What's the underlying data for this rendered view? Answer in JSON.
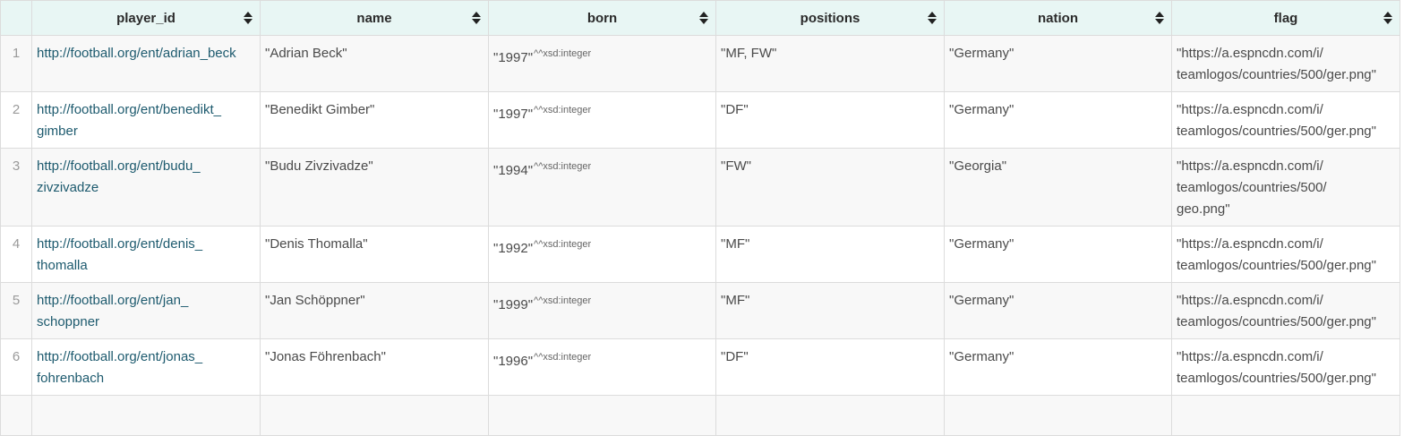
{
  "columns": [
    "player_id",
    "name",
    "born",
    "positions",
    "nation",
    "flag"
  ],
  "datatype_suffix": "^^xsd:integer",
  "rows": [
    {
      "num": "1",
      "player_id": [
        "http://football.org/ent/adrian_beck"
      ],
      "name": "\"Adrian Beck\"",
      "born": "\"1997\"",
      "positions": "\"MF, FW\"",
      "nation": "\"Germany\"",
      "flag": [
        "\"https://a.espncdn.com/i/",
        "teamlogos/countries/500/ger.png\""
      ]
    },
    {
      "num": "2",
      "player_id": [
        "http://football.org/ent/benedikt_",
        "gimber"
      ],
      "name": "\"Benedikt Gimber\"",
      "born": "\"1997\"",
      "positions": "\"DF\"",
      "nation": "\"Germany\"",
      "flag": [
        "\"https://a.espncdn.com/i/",
        "teamlogos/countries/500/ger.png\""
      ]
    },
    {
      "num": "3",
      "player_id": [
        "http://football.org/ent/budu_",
        "zivzivadze"
      ],
      "name": "\"Budu Zivzivadze\"",
      "born": "\"1994\"",
      "positions": "\"FW\"",
      "nation": "\"Georgia\"",
      "flag": [
        "\"https://a.espncdn.com/i/",
        "teamlogos/countries/500/",
        "geo.png\""
      ]
    },
    {
      "num": "4",
      "player_id": [
        "http://football.org/ent/denis_",
        "thomalla"
      ],
      "name": "\"Denis Thomalla\"",
      "born": "\"1992\"",
      "positions": "\"MF\"",
      "nation": "\"Germany\"",
      "flag": [
        "\"https://a.espncdn.com/i/",
        "teamlogos/countries/500/ger.png\""
      ]
    },
    {
      "num": "5",
      "player_id": [
        "http://football.org/ent/jan_",
        "schoppner"
      ],
      "name": "\"Jan Schöppner\"",
      "born": "\"1999\"",
      "positions": "\"MF\"",
      "nation": "\"Germany\"",
      "flag": [
        "\"https://a.espncdn.com/i/",
        "teamlogos/countries/500/ger.png\""
      ]
    },
    {
      "num": "6",
      "player_id": [
        "http://football.org/ent/jonas_",
        "fohrenbach"
      ],
      "name": "\"Jonas Föhrenbach\"",
      "born": "\"1996\"",
      "positions": "\"DF\"",
      "nation": "\"Germany\"",
      "flag": [
        "\"https://a.espncdn.com/i/",
        "teamlogos/countries/500/ger.png\""
      ]
    }
  ]
}
